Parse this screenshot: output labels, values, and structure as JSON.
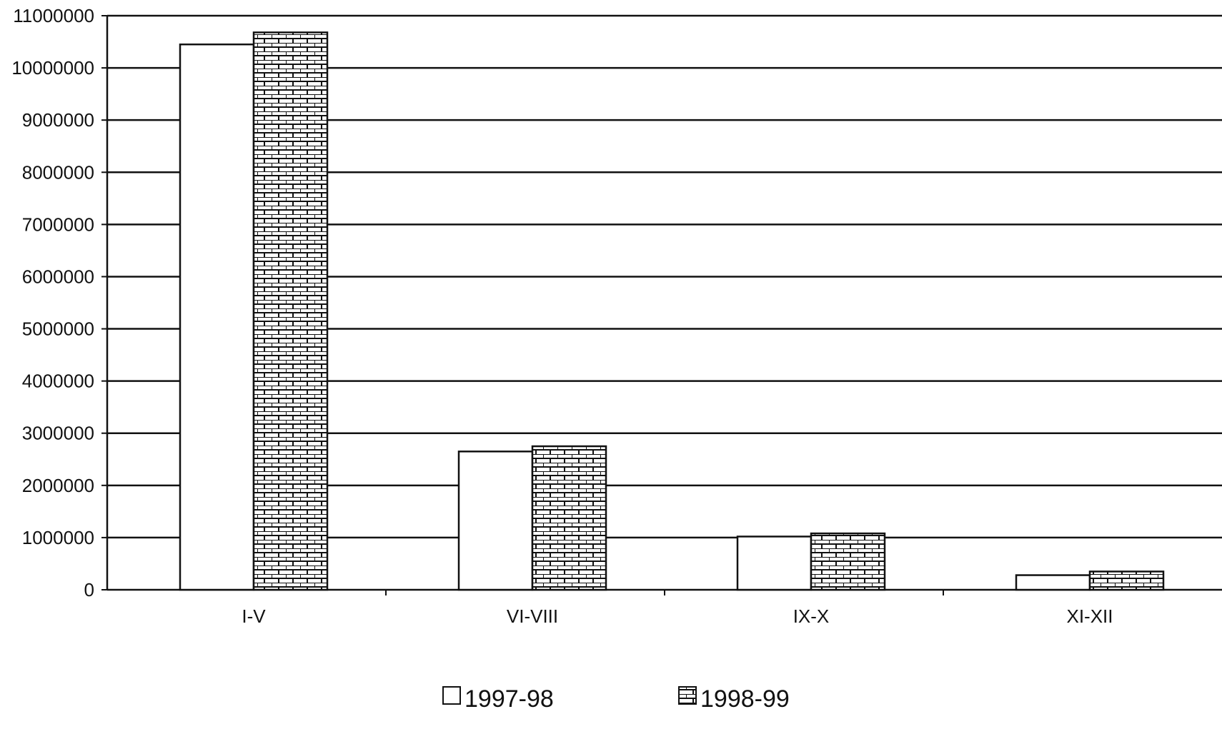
{
  "chart_data": {
    "type": "bar",
    "title": "",
    "xlabel": "",
    "ylabel": "",
    "categories": [
      "I-V",
      "VI-VIII",
      "IX-X",
      "XI-XII"
    ],
    "series": [
      {
        "name": "1997-98",
        "values": [
          10450000,
          2650000,
          1020000,
          280000
        ],
        "fill": "#ffffff",
        "pattern": "none"
      },
      {
        "name": "1998-99",
        "values": [
          10680000,
          2750000,
          1080000,
          350000
        ],
        "fill": "#ffffff",
        "pattern": "brick"
      }
    ],
    "ylim": [
      0,
      11000000
    ],
    "yticks": [
      0,
      1000000,
      2000000,
      3000000,
      4000000,
      5000000,
      6000000,
      7000000,
      8000000,
      9000000,
      10000000,
      11000000
    ],
    "ytick_labels": [
      "0",
      "1000000",
      "2000000",
      "3000000",
      "4000000",
      "5000000",
      "6000000",
      "7000000",
      "8000000",
      "9000000",
      "10000000",
      "11000000"
    ],
    "grid": true,
    "legend_position": "bottom-center"
  },
  "colors": {
    "stroke": "#111111",
    "background": "#ffffff"
  }
}
